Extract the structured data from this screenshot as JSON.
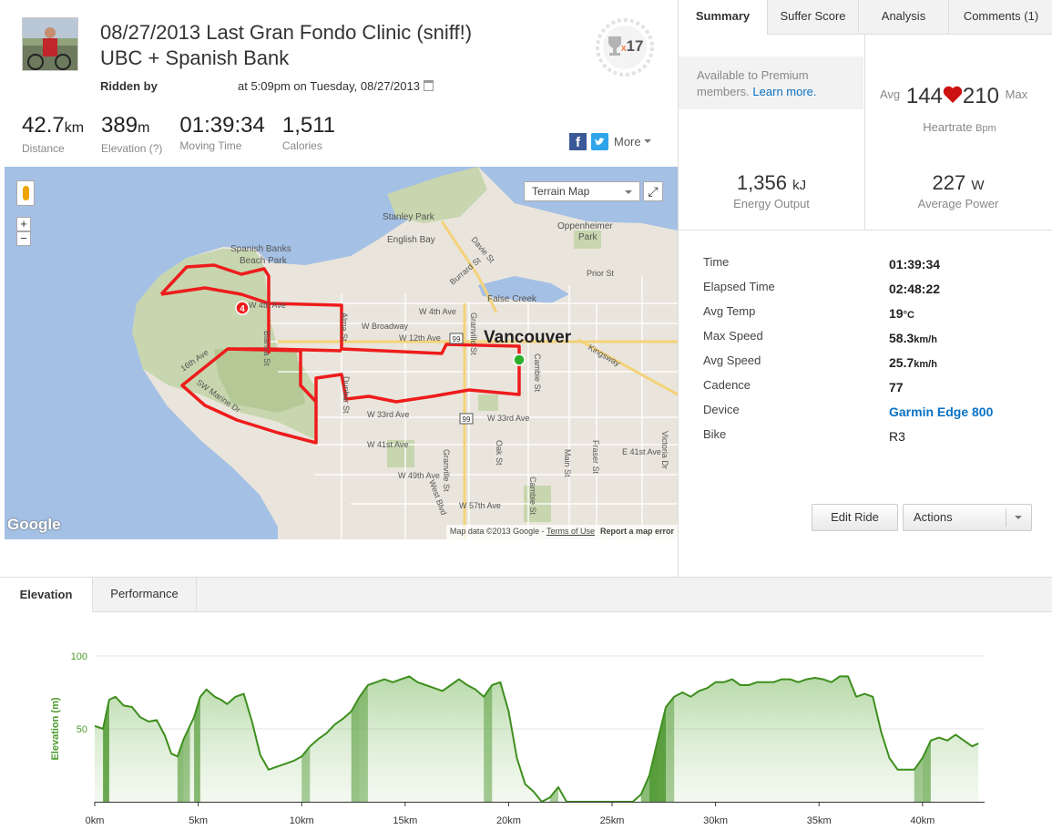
{
  "ride": {
    "title_line1": "08/27/2013 Last Gran Fondo Clinic (sniff!)",
    "title_line2": "UBC + Spanish Bank",
    "ridden_by": "Ridden by",
    "when": "at 5:09pm on Tuesday, 08/27/2013",
    "achievements_prefix": "x",
    "achievements_count": "17"
  },
  "stats": [
    {
      "value": "42.7",
      "unit": "km",
      "label": "Distance"
    },
    {
      "value": "389",
      "unit": "m",
      "label": "Elevation (?)"
    },
    {
      "value": "01:39:34",
      "unit": "",
      "label": "Moving Time"
    },
    {
      "value": "1,511",
      "unit": "",
      "label": "Calories"
    }
  ],
  "share": {
    "facebook_glyph": "f",
    "more_label": "More"
  },
  "map": {
    "type_select": "Terrain Map",
    "zoom_in": "+",
    "zoom_out": "−",
    "fullscreen_glyph": "⤢",
    "google": "Google",
    "credit": "Map data ©2013 Google",
    "terms": "Terms of Use",
    "report": "Report a map error",
    "labels": {
      "stanley_park": "Stanley Park",
      "english_bay": "English Bay",
      "spanish_banks_1": "Spanish Banks",
      "spanish_banks_2": "Beach Park",
      "oppenheimer_1": "Oppenheimer",
      "oppenheimer_2": "Park",
      "vancouver": "Vancouver",
      "false_creek": "False Creek",
      "w4th": "W 4th Ave",
      "w4th_west": "W 4th Ave",
      "broadway": "W Broadway",
      "w12th": "W 12th Ave",
      "w33rd": "W 33rd Ave",
      "w33rd_east": "W 33rd Ave",
      "w41st": "W 41st Ave",
      "w49th": "W 49th Ave",
      "w57th": "W 57th Ave",
      "e41st": "E 41st Ave",
      "prior": "Prior St",
      "kingsway": "Kingsway",
      "cambie": "Cambie St",
      "cambie_south": "Cambie St",
      "granville": "Granville St",
      "granville_south": "Granville St",
      "oak": "Oak St",
      "main": "Main St",
      "fraser": "Fraser St",
      "victoria": "Victoria Dr",
      "burrard": "Burrard St",
      "davie": "Davie St",
      "alma": "Alma St",
      "dunbar": "Dunbar St",
      "west_blvd": "West Blvd",
      "blanca": "Blanca St",
      "sw_marine": "SW Marine Dr",
      "w16th": "16th Ave",
      "hwy99": "99",
      "hwy99_b": "99",
      "segment_badge": "4"
    }
  },
  "tabs": [
    {
      "label": "Summary"
    },
    {
      "label": "Suffer Score"
    },
    {
      "label": "Analysis"
    },
    {
      "label": "Comments (1)"
    }
  ],
  "premium": {
    "text": "Available to Premium members.",
    "link": "Learn more."
  },
  "heartrate": {
    "avg_label": "Avg",
    "avg": "144",
    "max": "210",
    "max_label": "Max",
    "label": "Heartrate",
    "unit": "Bpm"
  },
  "energy": {
    "value": "1,356",
    "unit": "kJ",
    "label": "Energy Output"
  },
  "power": {
    "value": "227",
    "unit": "W",
    "label": "Average Power"
  },
  "details": [
    {
      "label": "Time",
      "value": "01:39:34",
      "unit": ""
    },
    {
      "label": "Elapsed Time",
      "value": "02:48:22",
      "unit": ""
    },
    {
      "label": "Avg Temp",
      "value": "19",
      "unit": "°C"
    },
    {
      "label": "Max Speed",
      "value": "58.3",
      "unit": "km/h"
    },
    {
      "label": "Avg Speed",
      "value": "25.7",
      "unit": "km/h"
    },
    {
      "label": "Cadence",
      "value": "77",
      "unit": ""
    },
    {
      "label": "Device",
      "value": "Garmin Edge 800",
      "unit": ""
    },
    {
      "label": "Bike",
      "value": "R3",
      "unit": ""
    }
  ],
  "buttons": {
    "edit": "Edit Ride",
    "actions": "Actions"
  },
  "lower_tabs": {
    "elevation": "Elevation",
    "performance": "Performance"
  },
  "colors": {
    "accent": "#fc4c02",
    "link": "#0a72c4",
    "route": "#ee1c1c",
    "chart_line": "#3e8e1e",
    "heart": "#cc1111"
  },
  "chart_data": {
    "type": "area",
    "ylabel": "Elevation (m)",
    "ylim": [
      0,
      100
    ],
    "yticks": [
      50,
      100
    ],
    "xlim": [
      0,
      43
    ],
    "xticks": [
      "0km",
      "5km",
      "10km",
      "15km",
      "20km",
      "25km",
      "30km",
      "35km",
      "40km"
    ],
    "x": [
      0,
      0.4,
      0.7,
      1.0,
      1.4,
      1.8,
      2.2,
      2.6,
      3.0,
      3.4,
      3.7,
      4.0,
      4.3,
      4.6,
      4.8,
      5.1,
      5.4,
      5.8,
      6.1,
      6.4,
      6.8,
      7.2,
      7.6,
      8.0,
      8.4,
      8.8,
      9.2,
      9.6,
      10.0,
      10.4,
      10.8,
      11.2,
      11.6,
      12.0,
      12.4,
      12.8,
      13.2,
      13.6,
      14.0,
      14.4,
      14.8,
      15.2,
      15.6,
      16.0,
      16.4,
      16.8,
      17.2,
      17.6,
      18.0,
      18.4,
      18.8,
      19.2,
      19.6,
      20.0,
      20.4,
      20.8,
      21.2,
      21.6,
      22.0,
      22.4,
      22.8,
      23.2,
      23.6,
      24.0,
      24.5,
      25.0,
      25.5,
      26.0,
      26.4,
      26.8,
      27.2,
      27.6,
      28.0,
      28.4,
      28.8,
      29.2,
      29.6,
      30.0,
      30.4,
      30.8,
      31.2,
      31.6,
      32.0,
      32.4,
      32.8,
      33.2,
      33.6,
      34.0,
      34.4,
      34.8,
      35.2,
      35.6,
      36.0,
      36.4,
      36.8,
      37.2,
      37.6,
      38.0,
      38.4,
      38.8,
      39.2,
      39.6,
      40.0,
      40.4,
      40.8,
      41.2,
      41.6,
      42.0,
      42.4,
      42.7
    ],
    "values": [
      52,
      50,
      70,
      72,
      66,
      65,
      58,
      55,
      56,
      45,
      33,
      31,
      43,
      52,
      58,
      72,
      77,
      72,
      70,
      67,
      72,
      74,
      55,
      32,
      22,
      24,
      26,
      28,
      31,
      38,
      43,
      47,
      53,
      57,
      62,
      72,
      80,
      82,
      84,
      82,
      84,
      86,
      82,
      80,
      78,
      76,
      80,
      84,
      80,
      77,
      72,
      80,
      82,
      62,
      30,
      12,
      7,
      0,
      3,
      10,
      0,
      0,
      0,
      0,
      0,
      0,
      0,
      0,
      5,
      18,
      42,
      65,
      72,
      75,
      72,
      76,
      78,
      82,
      82,
      84,
      80,
      80,
      82,
      82,
      82,
      84,
      84,
      82,
      84,
      85,
      84,
      82,
      86,
      86,
      72,
      74,
      72,
      48,
      30,
      22,
      22,
      22,
      30,
      42,
      44,
      42,
      46,
      42,
      38,
      40
    ]
  }
}
